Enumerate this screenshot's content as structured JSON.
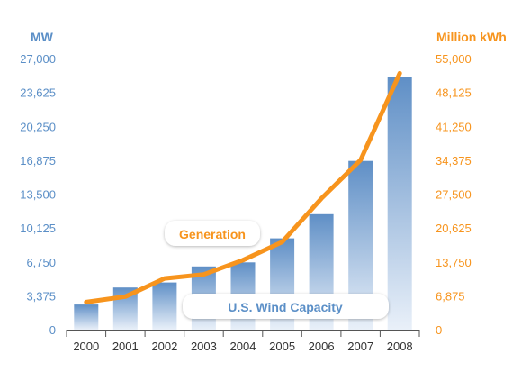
{
  "chart_data": {
    "type": "bar",
    "categories": [
      "2000",
      "2001",
      "2002",
      "2003",
      "2004",
      "2005",
      "2006",
      "2007",
      "2008"
    ],
    "left_axis": {
      "label": "MW",
      "ticks": [
        "0",
        "3,375",
        "6,750",
        "10,125",
        "13,500",
        "16,875",
        "20,250",
        "23,625",
        "27,000"
      ],
      "range": [
        0,
        27000
      ],
      "color": "#5b8fc7"
    },
    "right_axis": {
      "label": "Million kWh",
      "ticks": [
        "0",
        "6,875",
        "13,750",
        "20,625",
        "27,500",
        "34,375",
        "41,250",
        "48,125",
        "55,000"
      ],
      "range": [
        0,
        55000
      ],
      "color": "#f7941d"
    },
    "series": [
      {
        "name": "U.S. Wind Capacity",
        "type": "bar",
        "axis": "left",
        "color": "#6f9bcb",
        "values": [
          2500,
          4200,
          4700,
          6300,
          6700,
          9100,
          11500,
          16800,
          25200
        ]
      },
      {
        "name": "Generation",
        "type": "line",
        "axis": "right",
        "color": "#f7941d",
        "values": [
          5600,
          6700,
          10400,
          11200,
          14100,
          17800,
          26600,
          34400,
          52000
        ]
      }
    ],
    "callouts": {
      "line": "Generation",
      "bars": "U.S. Wind Capacity"
    },
    "grid": false
  }
}
